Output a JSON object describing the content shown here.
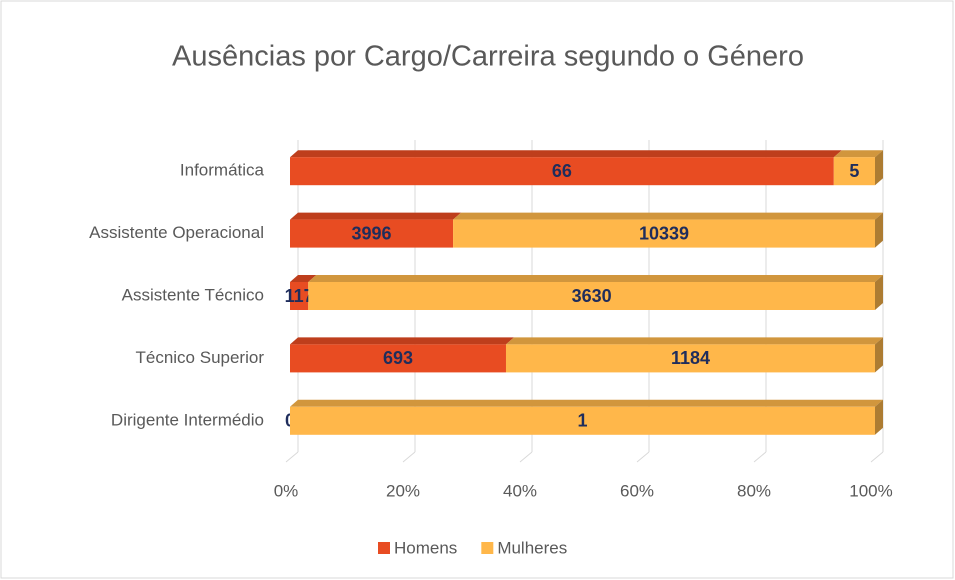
{
  "chart_data": {
    "type": "bar100",
    "orientation": "horizontal",
    "title": "Ausências por Cargo/Carreira segundo o Género",
    "categories": [
      "Informática",
      "Assistente Operacional",
      "Assistente Técnico",
      "Técnico Superior",
      "Dirigente Intermédio"
    ],
    "series": [
      {
        "name": "Homens",
        "color": "#e84c22",
        "values": [
          66,
          3996,
          117,
          693,
          0
        ]
      },
      {
        "name": "Mulheres",
        "color": "#ffb74a",
        "values": [
          5,
          10339,
          3630,
          1184,
          1
        ]
      }
    ],
    "xlim": [
      0,
      100
    ],
    "xticks": [
      {
        "value": 0,
        "label": "0%"
      },
      {
        "value": 20,
        "label": "20%"
      },
      {
        "value": 40,
        "label": "40%"
      },
      {
        "value": 60,
        "label": "60%"
      },
      {
        "value": 80,
        "label": "80%"
      },
      {
        "value": 100,
        "label": "100%"
      }
    ],
    "grid": true,
    "legend": "bottom"
  }
}
